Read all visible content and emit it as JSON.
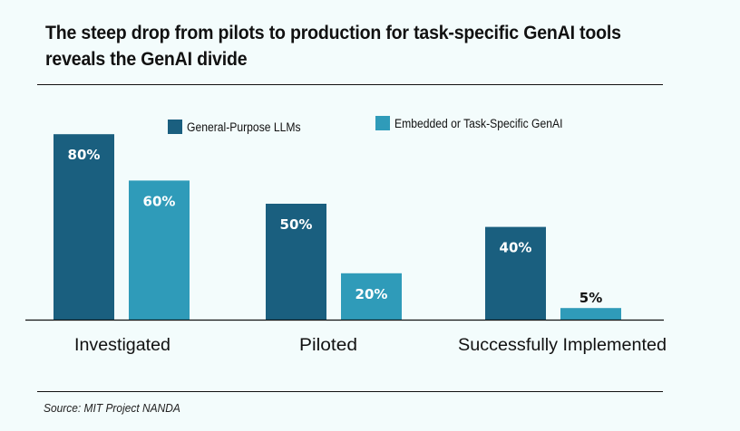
{
  "title": "The steep drop from pilots to production for task-specific GenAI tools reveals the GenAI divide",
  "source": "Source: MIT Project NANDA",
  "colors": {
    "general": "#1a5f7f",
    "embedded": "#2f9bb9",
    "background": "#f3fcfc",
    "label_light": "#ffffff",
    "label_dark": "#111111"
  },
  "chart_data": {
    "type": "bar",
    "title": "The steep drop from pilots to production for task-specific GenAI tools reveals the GenAI divide",
    "xlabel": "",
    "ylabel": "",
    "categories": [
      "Investigated",
      "Piloted",
      "Successfully Implemented"
    ],
    "series": [
      {
        "name": "General-Purpose LLMs",
        "values": [
          80,
          50,
          40
        ],
        "labels": [
          "80%",
          "50%",
          "40%"
        ]
      },
      {
        "name": "Embedded or Task-Specific GenAI",
        "values": [
          60,
          20,
          5
        ],
        "labels": [
          "60%",
          "20%",
          "5%"
        ]
      }
    ],
    "ylim": [
      0,
      100
    ],
    "grid": false,
    "legend": "top-center",
    "value_unit": "%"
  }
}
